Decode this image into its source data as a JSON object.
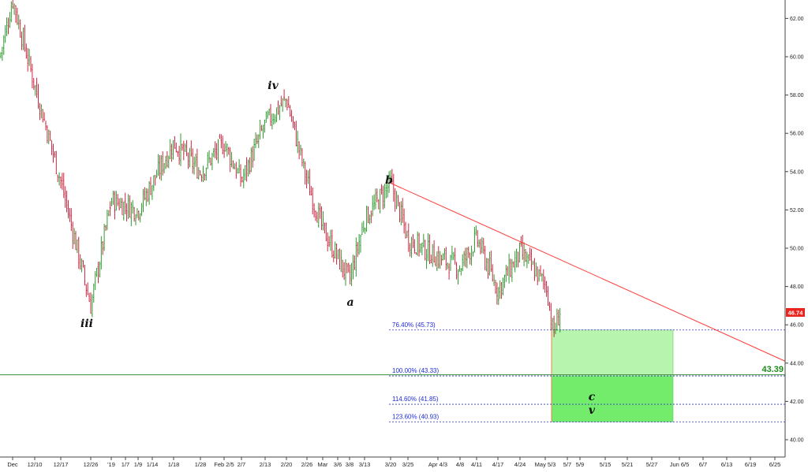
{
  "chart_data": {
    "type": "line",
    "title": "",
    "xlabel": "",
    "ylabel": "",
    "ylim": [
      39.2,
      63.5
    ],
    "y_ticks": [
      "40.00",
      "42.00",
      "44.00",
      "46.00",
      "48.00",
      "50.00",
      "52.00",
      "54.00",
      "56.00",
      "58.00",
      "60.00",
      "62.00"
    ],
    "x_ticks": [
      "Dec",
      "12/10",
      "12/17",
      "12/26",
      "'19",
      "1/7",
      "1/9",
      "1/14",
      "1/18",
      "1/28",
      "Feb 2/5",
      "2/7",
      "2/13",
      "2/20",
      "2/26",
      "Mar",
      "3/6",
      "3/8",
      "3/13",
      "3/20",
      "3/25",
      "Apr 4/3",
      "4/8",
      "4/11",
      "4/17",
      "4/24",
      "May 5/3",
      "5/7",
      "5/9",
      "5/15",
      "5/21",
      "5/27",
      "Jun 6/5",
      "6/7",
      "6/13",
      "6/19",
      "6/25"
    ],
    "grid": false,
    "series": [
      {
        "name": "",
        "description_points": [
          {
            "x": "Dec",
            "y": 60.0
          },
          {
            "x": "Dec",
            "y": 63.0
          },
          {
            "x": "12/10",
            "y": 58.5
          },
          {
            "x": "12/17",
            "y": 53.5
          },
          {
            "x": "12/26",
            "y": 47.0
          },
          {
            "x": "'19",
            "y": 52.5
          },
          {
            "x": "1/9",
            "y": 52.0
          },
          {
            "x": "1/18",
            "y": 55.5
          },
          {
            "x": "1/28",
            "y": 54.0
          },
          {
            "x": "Feb 2/5",
            "y": 55.5
          },
          {
            "x": "2/7",
            "y": 53.5
          },
          {
            "x": "2/13",
            "y": 56.5
          },
          {
            "x": "2/20",
            "y": 57.8
          },
          {
            "x": "2/26",
            "y": 53.5
          },
          {
            "x": "Mar",
            "y": 51.0
          },
          {
            "x": "3/8",
            "y": 48.3
          },
          {
            "x": "3/13",
            "y": 51.5
          },
          {
            "x": "3/20",
            "y": 53.4
          },
          {
            "x": "3/25",
            "y": 50.5
          },
          {
            "x": "Apr 4/3",
            "y": 49.5
          },
          {
            "x": "4/8",
            "y": 49.0
          },
          {
            "x": "4/11",
            "y": 50.5
          },
          {
            "x": "4/17",
            "y": 47.8
          },
          {
            "x": "4/24",
            "y": 49.8
          },
          {
            "x": "May 5/3",
            "y": 48.0
          },
          {
            "x": "May 5/3",
            "y": 45.5
          },
          {
            "x": "5/7",
            "y": 46.74
          }
        ]
      }
    ],
    "last_price": "46.74",
    "wave_labels": [
      "iii",
      "iv",
      "a",
      "b",
      "c",
      "v"
    ],
    "fib_levels": [
      {
        "label": "76.40% (45.73)",
        "value": 45.73
      },
      {
        "label": "100.00% (43.33)",
        "value": 43.33
      },
      {
        "label": "114.60% (41.85)",
        "value": 41.85
      },
      {
        "label": "123.60% (40.93)",
        "value": 40.93
      }
    ],
    "support_level": {
      "label": "43.39",
      "value": 43.39
    },
    "trendline": {
      "from": {
        "x": "3/20",
        "y": 53.4
      },
      "to": {
        "x": "6/25",
        "y": 44.1
      }
    },
    "target_zone": {
      "from": 45.73,
      "to": 40.93,
      "dark_from": 43.33
    },
    "colors": {
      "up_bar": "#1a8f1a",
      "down_bar": "#c8102e",
      "trendline": "#ff3b3b",
      "fib_line": "#2f35c9",
      "support_line": "#3c8c3c",
      "zone_light": "#b7f5ae",
      "zone_dark": "#72ec6a",
      "price_badge": "#e8251f"
    }
  }
}
